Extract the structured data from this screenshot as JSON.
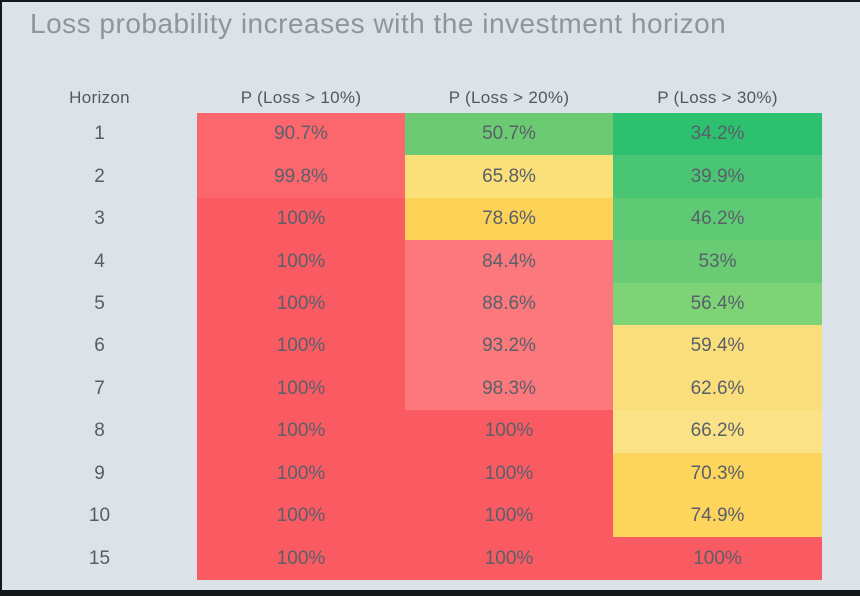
{
  "title": "Loss probability increases with the investment horizon",
  "colors": {
    "background": "#DBE3E9",
    "frame": "#15181b",
    "title_text": "#8D959D",
    "header_text": "#4E5961",
    "cell_text": "#59606A",
    "red_strong": "#FA5A62",
    "red_light": "#FB676D",
    "pink_light": "#FB797D",
    "gold": "#FDD45C",
    "yellow_light": "#FBDE7C",
    "green_dark": "#2CC06F",
    "green_mid": "#5FCA74",
    "green_light": "#7ED377"
  },
  "table": {
    "columns": [
      "Horizon",
      "P (Loss > 10%)",
      "P (Loss > 20%)",
      "P (Loss > 30%)"
    ],
    "rows": [
      {
        "horizon": "1",
        "cells": [
          {
            "value": "90.7%",
            "color": "#FB676D"
          },
          {
            "value": "50.7%",
            "color": "#6CCB72"
          },
          {
            "value": "34.2%",
            "color": "#2CC06F"
          }
        ]
      },
      {
        "horizon": "2",
        "cells": [
          {
            "value": "99.8%",
            "color": "#FB676D"
          },
          {
            "value": "65.8%",
            "color": "#FBDF79"
          },
          {
            "value": "39.9%",
            "color": "#4AC573"
          }
        ]
      },
      {
        "horizon": "3",
        "cells": [
          {
            "value": "100%",
            "color": "#FA5A62"
          },
          {
            "value": "78.6%",
            "color": "#FCD257"
          },
          {
            "value": "46.2%",
            "color": "#5FCA74"
          }
        ]
      },
      {
        "horizon": "4",
        "cells": [
          {
            "value": "100%",
            "color": "#FA5A62"
          },
          {
            "value": "84.4%",
            "color": "#FB797D"
          },
          {
            "value": "53%",
            "color": "#69CC75"
          }
        ]
      },
      {
        "horizon": "5",
        "cells": [
          {
            "value": "100%",
            "color": "#FA5A62"
          },
          {
            "value": "88.6%",
            "color": "#FB797D"
          },
          {
            "value": "56.4%",
            "color": "#7ED377"
          }
        ]
      },
      {
        "horizon": "6",
        "cells": [
          {
            "value": "100%",
            "color": "#FA5A62"
          },
          {
            "value": "93.2%",
            "color": "#FB797D"
          },
          {
            "value": "59.4%",
            "color": "#FBDE7C"
          }
        ]
      },
      {
        "horizon": "7",
        "cells": [
          {
            "value": "100%",
            "color": "#FA5A62"
          },
          {
            "value": "98.3%",
            "color": "#FB797D"
          },
          {
            "value": "62.6%",
            "color": "#FBDE7C"
          }
        ]
      },
      {
        "horizon": "8",
        "cells": [
          {
            "value": "100%",
            "color": "#FA5A62"
          },
          {
            "value": "100%",
            "color": "#FA5A62"
          },
          {
            "value": "66.2%",
            "color": "#FCE286"
          }
        ]
      },
      {
        "horizon": "9",
        "cells": [
          {
            "value": "100%",
            "color": "#FA5A62"
          },
          {
            "value": "100%",
            "color": "#FA5A62"
          },
          {
            "value": "70.3%",
            "color": "#FDD45C"
          }
        ]
      },
      {
        "horizon": "10",
        "cells": [
          {
            "value": "100%",
            "color": "#FA5A62"
          },
          {
            "value": "100%",
            "color": "#FA5A62"
          },
          {
            "value": "74.9%",
            "color": "#FDD45C"
          }
        ]
      },
      {
        "horizon": "15",
        "cells": [
          {
            "value": "100%",
            "color": "#FA5A62"
          },
          {
            "value": "100%",
            "color": "#FA5A62"
          },
          {
            "value": "100%",
            "color": "#FA5A62"
          }
        ]
      }
    ]
  },
  "chart_data": {
    "type": "heatmap",
    "title": "Loss probability increases with the investment horizon",
    "row_axis_label": "Horizon",
    "rows": [
      1,
      2,
      3,
      4,
      5,
      6,
      7,
      8,
      9,
      10,
      15
    ],
    "columns": [
      "P (Loss > 10%)",
      "P (Loss > 20%)",
      "P (Loss > 30%)"
    ],
    "values_percent": [
      [
        90.7,
        50.7,
        34.2
      ],
      [
        99.8,
        65.8,
        39.9
      ],
      [
        100,
        78.6,
        46.2
      ],
      [
        100,
        84.4,
        53
      ],
      [
        100,
        88.6,
        56.4
      ],
      [
        100,
        93.2,
        59.4
      ],
      [
        100,
        98.3,
        62.6
      ],
      [
        100,
        100,
        66.2
      ],
      [
        100,
        100,
        70.3
      ],
      [
        100,
        100,
        74.9
      ],
      [
        100,
        100,
        100
      ]
    ],
    "color_scale": "low=green #2CC06F, mid=yellow #FBDE7C/#FDD45C, high=red #FB797D/#FA5A62",
    "legend_position": "none",
    "grid": false
  }
}
